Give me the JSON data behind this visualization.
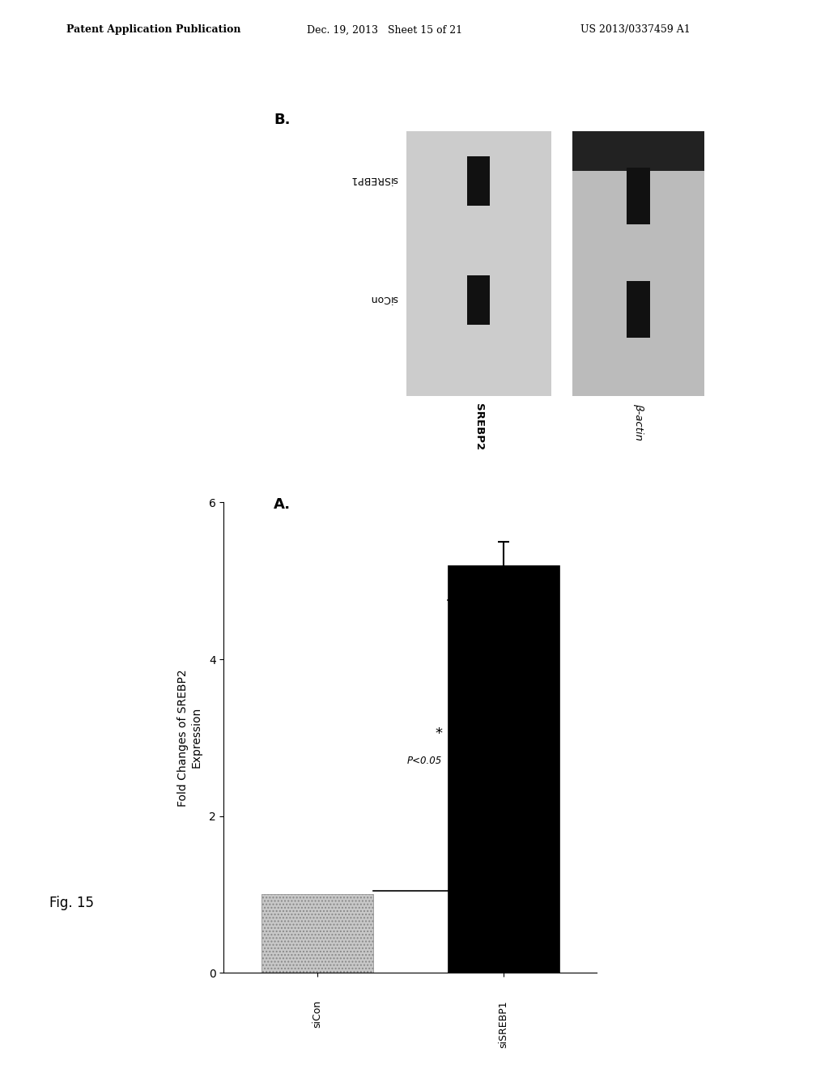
{
  "header_left": "Patent Application Publication",
  "header_mid": "Dec. 19, 2013   Sheet 15 of 21",
  "header_right": "US 2013/0337459 A1",
  "fig_label": "Fig. 15",
  "panel_a_label": "A.",
  "panel_b_label": "B.",
  "bar_categories": [
    "siSREBP1",
    "siCon"
  ],
  "bar_values": [
    5.2,
    1.0
  ],
  "bar_colors": [
    "#000000",
    "#c8c8c8"
  ],
  "error_bar_sisrebp1": 0.3,
  "xlabel_line1": "Fold Changes of SREBP2",
  "xlabel_line2": "Expression",
  "xlim": [
    0,
    6
  ],
  "xticks": [
    0,
    2,
    4,
    6
  ],
  "significance_text": "P<0.05",
  "significance_star": "*",
  "blot_label_sicon": "siCon",
  "blot_label_sisrebp1": "siSREBP1",
  "blot_label_srebp2": "SREBP2",
  "blot_label_bactin": "β-actin",
  "background_color": "#ffffff",
  "blot1_bg": "#cccccc",
  "blot2_bg": "#bbbbbb",
  "blot2_top_dark": "#222222",
  "band_color": "#111111"
}
